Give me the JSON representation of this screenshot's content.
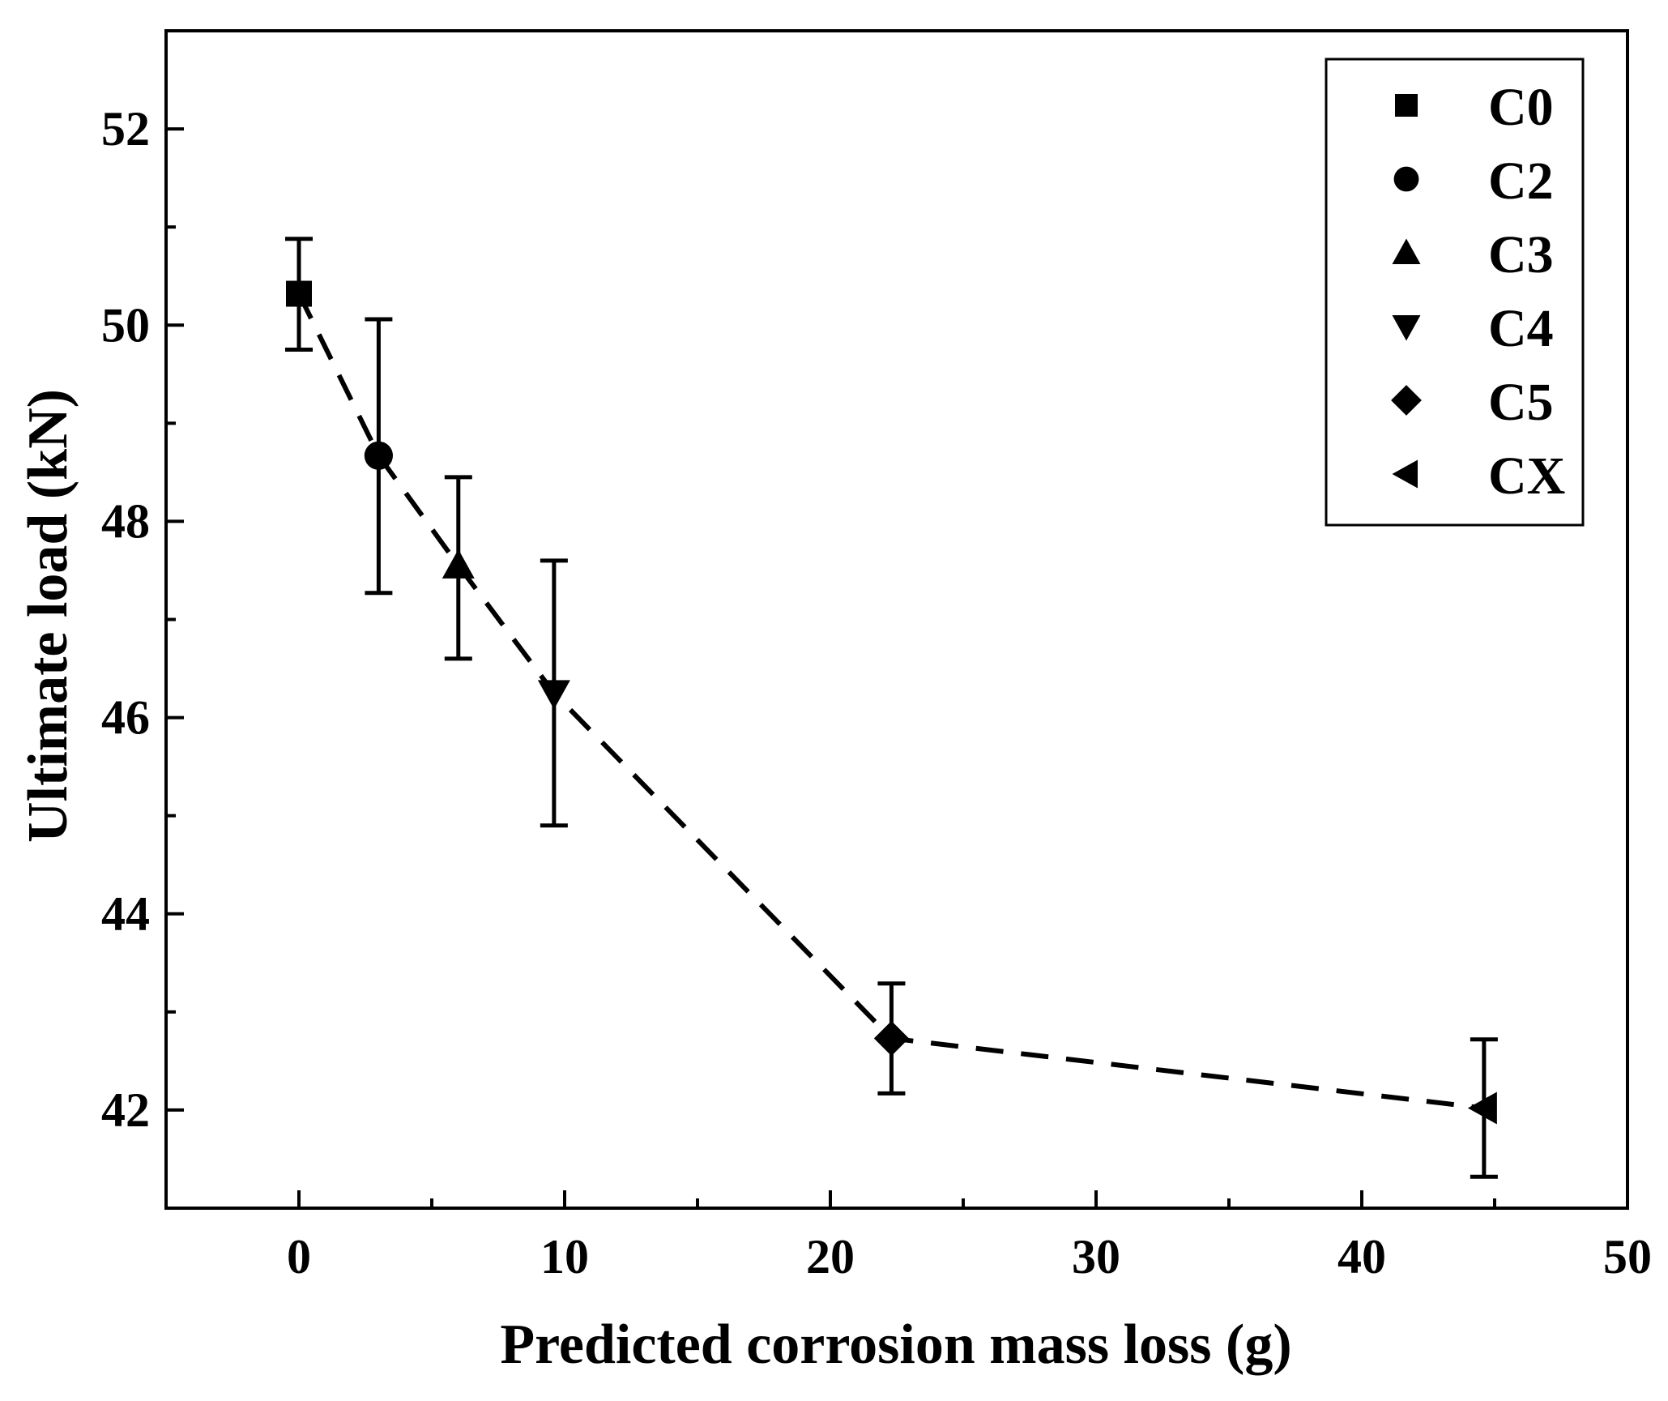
{
  "chart_data": {
    "type": "scatter",
    "title": "",
    "xlabel": "Predicted corrosion mass loss (g)",
    "ylabel": "Ultimate load (kN)",
    "xlim": [
      -5,
      50
    ],
    "ylim": [
      41,
      53
    ],
    "x_ticks": [
      0,
      10,
      20,
      30,
      40,
      50
    ],
    "x_tick_labels": [
      "0",
      "10",
      "20",
      "30",
      "40",
      "50"
    ],
    "x_minor_ticks": [
      5,
      15,
      25,
      35,
      45
    ],
    "y_ticks": [
      42,
      44,
      46,
      48,
      50,
      52
    ],
    "y_tick_labels": [
      "42",
      "44",
      "46",
      "48",
      "50",
      "52"
    ],
    "y_minor_ticks": [
      43,
      45,
      47,
      49,
      51
    ],
    "grid": false,
    "legend_position": "top-right",
    "trend_line": "dashed",
    "series": [
      {
        "name": "C0",
        "marker": "square",
        "x": 0,
        "y": 50.32,
        "err_low": 0.57,
        "err_high": 0.56
      },
      {
        "name": "C2",
        "marker": "circle",
        "x": 3.0,
        "y": 48.67,
        "err_low": 1.4,
        "err_high": 1.39
      },
      {
        "name": "C3",
        "marker": "triangle-up",
        "x": 6.0,
        "y": 47.55,
        "err_low": 0.95,
        "err_high": 0.9
      },
      {
        "name": "C4",
        "marker": "triangle-down",
        "x": 9.6,
        "y": 46.25,
        "err_low": 1.35,
        "err_high": 1.35
      },
      {
        "name": "C5",
        "marker": "diamond",
        "x": 22.3,
        "y": 42.73,
        "err_low": 0.56,
        "err_high": 0.56
      },
      {
        "name": "CX",
        "marker": "triangle-left",
        "x": 44.6,
        "y": 42.02,
        "err_low": 0.7,
        "err_high": 0.7
      }
    ],
    "colors": {
      "marker": "#000000",
      "axis": "#000000",
      "background": "#ffffff"
    }
  }
}
